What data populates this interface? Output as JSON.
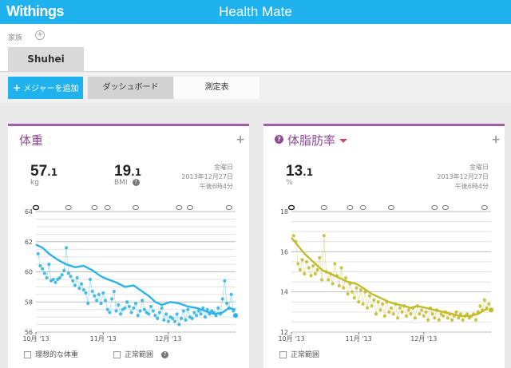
{
  "header": {
    "logo": "Withings",
    "title": "Health Mate"
  },
  "family": {
    "label": "家族",
    "add_icon": "plus-circle-icon",
    "user": "Shuhei"
  },
  "actions": {
    "add_measure": "メジャーを追加",
    "add_icon": "+",
    "tabs": [
      "ダッシュボード",
      "測定表"
    ]
  },
  "weight_panel": {
    "title": "体重",
    "add": "+",
    "weight_int": "57",
    "weight_dec": ".1",
    "weight_unit": "kg",
    "bmi_int": "19",
    "bmi_dec": ".1",
    "bmi_label": "BMI",
    "date_weekday": "金曜日",
    "date": "2013年12月27日",
    "time": "午後6時4分",
    "checkbox1": "理想的な体重",
    "checkbox2": "正常範囲"
  },
  "fat_panel": {
    "title": "体脂肪率",
    "add": "+",
    "fat_int": "13",
    "fat_dec": ".1",
    "fat_unit": "%",
    "date_weekday": "金曜日",
    "date": "2013年12月27日",
    "time": "午後6時4分",
    "checkbox1": "正常範囲"
  },
  "colors": {
    "accent": "#1fb2ee",
    "panel_border": "#a05ca6",
    "title": "#8e4a97",
    "weight_line": "#29b3e6",
    "fat_line": "#c2bb2a"
  },
  "chart_data": [
    {
      "type": "line",
      "ylim": [
        56,
        64
      ],
      "yticks": [
        "64",
        "62",
        "60",
        "58",
        "56"
      ],
      "xticks": [
        "10月 '13",
        "11月 '13",
        "12月 '13"
      ],
      "xlim_days": [
        0,
        92
      ],
      "xtick_days": [
        0,
        31,
        61
      ],
      "trend": [
        [
          0,
          61.8
        ],
        [
          3,
          61.6
        ],
        [
          6,
          61.2
        ],
        [
          10,
          60.8
        ],
        [
          14,
          60.5
        ],
        [
          18,
          60.3
        ],
        [
          22,
          60.4
        ],
        [
          26,
          60.1
        ],
        [
          30,
          59.7
        ],
        [
          33,
          59.5
        ],
        [
          37,
          59.3
        ],
        [
          41,
          59.0
        ],
        [
          45,
          59.1
        ],
        [
          48,
          58.8
        ],
        [
          52,
          58.4
        ],
        [
          55,
          58.0
        ],
        [
          58,
          57.8
        ],
        [
          62,
          58.0
        ],
        [
          66,
          57.9
        ],
        [
          70,
          57.7
        ],
        [
          74,
          57.6
        ],
        [
          78,
          57.4
        ],
        [
          82,
          57.2
        ],
        [
          86,
          57.3
        ],
        [
          89,
          57.6
        ],
        [
          92,
          57.5
        ]
      ],
      "points": [
        [
          1,
          61.2
        ],
        [
          2,
          60.4
        ],
        [
          3,
          60.2
        ],
        [
          4,
          59.9
        ],
        [
          5,
          59.6
        ],
        [
          6,
          60.5
        ],
        [
          7,
          59.4
        ],
        [
          8,
          59.5
        ],
        [
          9,
          59.3
        ],
        [
          10,
          59.5
        ],
        [
          11,
          59.6
        ],
        [
          12,
          59.8
        ],
        [
          13,
          60.1
        ],
        [
          14,
          61.6
        ],
        [
          15,
          59.9
        ],
        [
          16,
          59.7
        ],
        [
          17,
          59.4
        ],
        [
          18,
          59.1
        ],
        [
          19,
          59.6
        ],
        [
          20,
          58.9
        ],
        [
          21,
          59.2
        ],
        [
          22,
          58.8
        ],
        [
          23,
          58.6
        ],
        [
          24,
          57.9
        ],
        [
          25,
          59.5
        ],
        [
          26,
          58.7
        ],
        [
          27,
          58.4
        ],
        [
          28,
          58.1
        ],
        [
          29,
          58.5
        ],
        [
          30,
          57.9
        ],
        [
          31,
          58.6
        ],
        [
          32,
          58.1
        ],
        [
          33,
          57.5
        ],
        [
          34,
          57.3
        ],
        [
          35,
          58.2
        ],
        [
          36,
          58.7
        ],
        [
          37,
          57.4
        ],
        [
          38,
          57.8
        ],
        [
          39,
          57.2
        ],
        [
          40,
          57.5
        ],
        [
          41,
          57.6
        ],
        [
          42,
          58.0
        ],
        [
          43,
          57.7
        ],
        [
          44,
          57.3
        ],
        [
          45,
          57.6
        ],
        [
          46,
          57.9
        ],
        [
          47,
          57.1
        ],
        [
          48,
          57.4
        ],
        [
          49,
          58.1
        ],
        [
          50,
          57.5
        ],
        [
          51,
          57.3
        ],
        [
          52,
          57.2
        ],
        [
          53,
          57.7
        ],
        [
          54,
          57.4
        ],
        [
          55,
          57.1
        ],
        [
          56,
          56.9
        ],
        [
          57,
          57.3
        ],
        [
          58,
          57.6
        ],
        [
          59,
          56.8
        ],
        [
          60,
          57.2
        ],
        [
          61,
          56.7
        ],
        [
          62,
          57.0
        ],
        [
          63,
          56.9
        ],
        [
          64,
          56.7
        ],
        [
          65,
          57.2
        ],
        [
          66,
          56.5
        ],
        [
          67,
          56.9
        ],
        [
          68,
          57.4
        ],
        [
          69,
          56.8
        ],
        [
          70,
          57.5
        ],
        [
          71,
          57.0
        ],
        [
          72,
          56.9
        ],
        [
          73,
          57.3
        ],
        [
          74,
          57.1
        ],
        [
          75,
          57.4
        ],
        [
          76,
          57.2
        ],
        [
          77,
          57.6
        ],
        [
          78,
          57.0
        ],
        [
          79,
          57.5
        ],
        [
          80,
          57.2
        ],
        [
          81,
          57.4
        ],
        [
          82,
          57.3
        ],
        [
          83,
          57.1
        ],
        [
          84,
          57.6
        ],
        [
          85,
          57.2
        ],
        [
          86,
          58.2
        ],
        [
          87,
          59.4
        ],
        [
          88,
          57.9
        ],
        [
          89,
          57.6
        ],
        [
          90,
          58.5
        ],
        [
          91,
          57.4
        ],
        [
          92,
          57.1
        ]
      ],
      "markers": [
        15,
        27,
        33,
        46,
        66,
        71,
        89
      ]
    },
    {
      "type": "line",
      "ylim": [
        12,
        18
      ],
      "yticks": [
        "18",
        "16",
        "14",
        "12"
      ],
      "xticks": [
        "10月 '13",
        "11月 '13",
        "12月 '13"
      ],
      "xlim_days": [
        0,
        92
      ],
      "xtick_days": [
        0,
        31,
        61
      ],
      "trend": [
        [
          0,
          16.7
        ],
        [
          3,
          16.3
        ],
        [
          6,
          15.9
        ],
        [
          10,
          15.5
        ],
        [
          14,
          15.1
        ],
        [
          18,
          14.9
        ],
        [
          22,
          14.7
        ],
        [
          26,
          14.5
        ],
        [
          30,
          14.4
        ],
        [
          33,
          14.2
        ],
        [
          37,
          13.9
        ],
        [
          41,
          13.7
        ],
        [
          45,
          13.5
        ],
        [
          48,
          13.4
        ],
        [
          52,
          13.3
        ],
        [
          55,
          13.2
        ],
        [
          58,
          13.3
        ],
        [
          62,
          13.2
        ],
        [
          66,
          13.1
        ],
        [
          70,
          13.0
        ],
        [
          74,
          12.9
        ],
        [
          78,
          12.8
        ],
        [
          82,
          12.8
        ],
        [
          86,
          12.9
        ],
        [
          89,
          13.1
        ],
        [
          92,
          13.2
        ]
      ],
      "points": [
        [
          1,
          16.8
        ],
        [
          2,
          16.5
        ],
        [
          3,
          15.4
        ],
        [
          4,
          15.1
        ],
        [
          5,
          15.6
        ],
        [
          6,
          14.9
        ],
        [
          7,
          15.5
        ],
        [
          8,
          15.2
        ],
        [
          9,
          14.8
        ],
        [
          10,
          15.3
        ],
        [
          11,
          14.9
        ],
        [
          12,
          15.1
        ],
        [
          13,
          15.7
        ],
        [
          14,
          14.6
        ],
        [
          15,
          16.8
        ],
        [
          16,
          15.0
        ],
        [
          17,
          14.6
        ],
        [
          18,
          14.9
        ],
        [
          19,
          14.4
        ],
        [
          20,
          15.4
        ],
        [
          21,
          14.8
        ],
        [
          22,
          14.3
        ],
        [
          23,
          15.2
        ],
        [
          24,
          14.2
        ],
        [
          25,
          14.7
        ],
        [
          26,
          13.9
        ],
        [
          27,
          14.4
        ],
        [
          28,
          14.0
        ],
        [
          29,
          13.7
        ],
        [
          30,
          14.2
        ],
        [
          31,
          13.5
        ],
        [
          32,
          14.1
        ],
        [
          33,
          13.4
        ],
        [
          34,
          14.0
        ],
        [
          35,
          13.2
        ],
        [
          36,
          13.8
        ],
        [
          37,
          13.3
        ],
        [
          38,
          13.6
        ],
        [
          39,
          12.9
        ],
        [
          40,
          13.5
        ],
        [
          41,
          13.1
        ],
        [
          42,
          13.4
        ],
        [
          43,
          12.8
        ],
        [
          44,
          13.5
        ],
        [
          45,
          13.0
        ],
        [
          46,
          13.2
        ],
        [
          47,
          12.9
        ],
        [
          48,
          13.4
        ],
        [
          49,
          12.7
        ],
        [
          50,
          13.2
        ],
        [
          51,
          13.0
        ],
        [
          52,
          13.3
        ],
        [
          53,
          12.8
        ],
        [
          54,
          13.1
        ],
        [
          55,
          12.9
        ],
        [
          56,
          13.2
        ],
        [
          57,
          12.7
        ],
        [
          58,
          13.3
        ],
        [
          59,
          12.9
        ],
        [
          60,
          13.1
        ],
        [
          61,
          12.8
        ],
        [
          62,
          13.0
        ],
        [
          63,
          12.6
        ],
        [
          64,
          13.2
        ],
        [
          65,
          12.9
        ],
        [
          66,
          12.7
        ],
        [
          67,
          13.1
        ],
        [
          68,
          12.6
        ],
        [
          69,
          12.9
        ],
        [
          70,
          12.8
        ],
        [
          71,
          13.0
        ],
        [
          72,
          12.7
        ],
        [
          73,
          12.9
        ],
        [
          74,
          12.6
        ],
        [
          75,
          12.8
        ],
        [
          76,
          13.0
        ],
        [
          77,
          12.7
        ],
        [
          78,
          12.9
        ],
        [
          79,
          12.6
        ],
        [
          80,
          12.8
        ],
        [
          81,
          12.9
        ],
        [
          82,
          12.7
        ],
        [
          83,
          12.8
        ],
        [
          84,
          12.9
        ],
        [
          85,
          12.6
        ],
        [
          86,
          13.0
        ],
        [
          87,
          13.3
        ],
        [
          88,
          13.1
        ],
        [
          89,
          13.6
        ],
        [
          90,
          13.2
        ],
        [
          91,
          13.4
        ],
        [
          92,
          13.1
        ]
      ],
      "markers": [
        15,
        27,
        33,
        46,
        66,
        71,
        89
      ]
    }
  ]
}
